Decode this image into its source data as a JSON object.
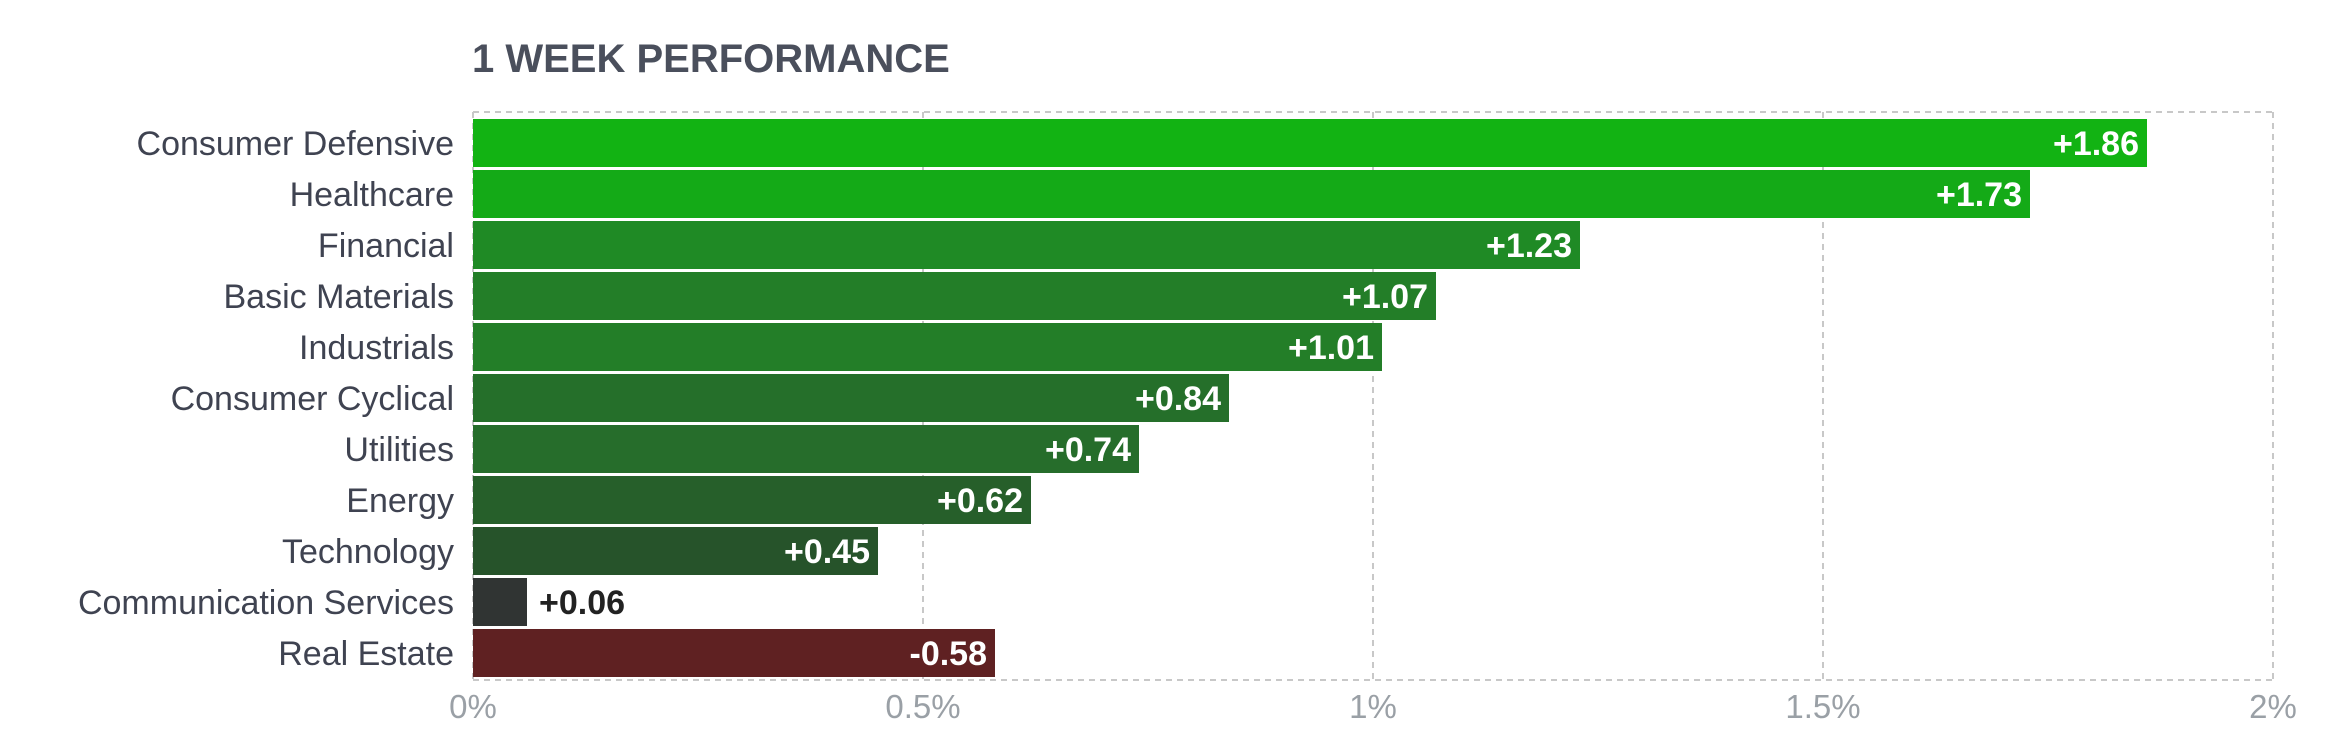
{
  "chart_data": {
    "type": "bar",
    "orientation": "horizontal",
    "title": "1 WEEK PERFORMANCE",
    "categories": [
      "Consumer Defensive",
      "Healthcare",
      "Financial",
      "Basic Materials",
      "Industrials",
      "Consumer Cyclical",
      "Utilities",
      "Energy",
      "Technology",
      "Communication Services",
      "Real Estate"
    ],
    "values": [
      1.86,
      1.73,
      1.23,
      1.07,
      1.01,
      0.84,
      0.74,
      0.62,
      0.45,
      0.06,
      -0.58
    ],
    "value_labels": [
      "+1.86",
      "+1.73",
      "+1.23",
      "+1.07",
      "+1.01",
      "+0.84",
      "+0.74",
      "+0.62",
      "+0.45",
      "+0.06",
      "-0.58"
    ],
    "bar_colors": [
      "#12b313",
      "#14aa17",
      "#1f8a25",
      "#237e28",
      "#237e28",
      "#256f2a",
      "#266d2b",
      "#265f2a",
      "#26532a",
      "#303433",
      "#5f2122"
    ],
    "value_label_colors": [
      "#ffffff",
      "#ffffff",
      "#ffffff",
      "#ffffff",
      "#ffffff",
      "#ffffff",
      "#ffffff",
      "#ffffff",
      "#ffffff",
      "#222222",
      "#ffffff"
    ],
    "xlim": [
      0,
      2
    ],
    "xticks": [
      0,
      0.5,
      1,
      1.5,
      2
    ],
    "xtick_labels": [
      "0%",
      "0.5%",
      "1%",
      "1.5%",
      "2%"
    ],
    "xlabel": "",
    "ylabel": "",
    "grid": true,
    "legend": "none"
  }
}
